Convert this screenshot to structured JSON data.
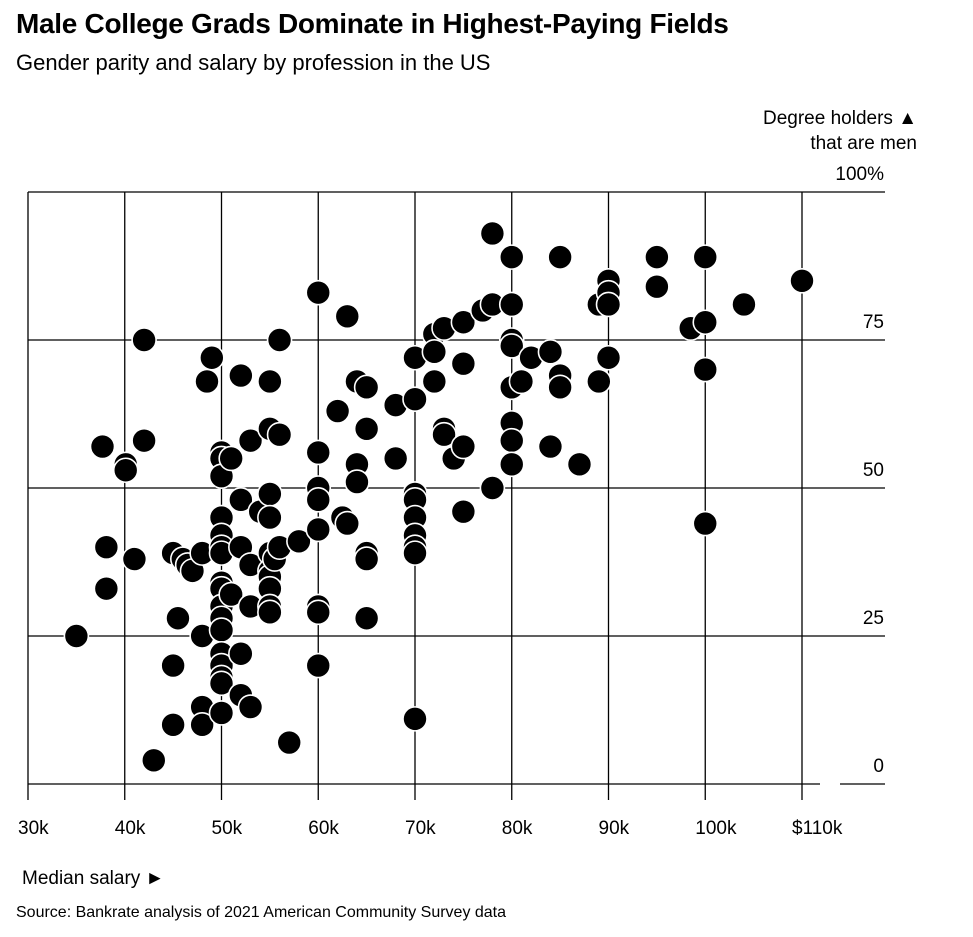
{
  "title": "Male College Grads Dominate in Highest-Paying Fields",
  "subtitle": "Gender parity and salary by profession in the US",
  "ylabel_line1": "Degree holders ▲",
  "ylabel_line2": "that are men",
  "xlabel": "Median salary ►",
  "source": "Source: Bankrate analysis of 2021 American Community Survey data",
  "chart_data": {
    "type": "scatter",
    "xlabel": "Median salary",
    "ylabel": "Degree holders that are men",
    "xlim": [
      30000,
      110000
    ],
    "ylim": [
      0,
      100
    ],
    "x_ticks": [
      30000,
      40000,
      50000,
      60000,
      70000,
      80000,
      90000,
      100000,
      110000
    ],
    "x_tick_labels": [
      "30k",
      "40k",
      "50k",
      "60k",
      "70k",
      "80k",
      "90k",
      "100k",
      "$110k"
    ],
    "y_ticks": [
      0,
      25,
      50,
      75,
      100
    ],
    "y_tick_labels": [
      "0",
      "25",
      "50",
      "75",
      "100%"
    ],
    "grid": true,
    "points": [
      [
        35000,
        25
      ],
      [
        37700,
        57
      ],
      [
        38100,
        40
      ],
      [
        38100,
        33
      ],
      [
        40100,
        54
      ],
      [
        40100,
        53
      ],
      [
        41000,
        38
      ],
      [
        42000,
        58
      ],
      [
        42000,
        75
      ],
      [
        43000,
        4
      ],
      [
        45000,
        39
      ],
      [
        45000,
        20
      ],
      [
        45000,
        10
      ],
      [
        45500,
        28
      ],
      [
        46000,
        38
      ],
      [
        46500,
        37
      ],
      [
        47000,
        36
      ],
      [
        48000,
        39
      ],
      [
        48000,
        25
      ],
      [
        48000,
        13
      ],
      [
        48000,
        10
      ],
      [
        48500,
        68
      ],
      [
        49000,
        72
      ],
      [
        50000,
        56
      ],
      [
        50000,
        55
      ],
      [
        50000,
        52
      ],
      [
        50000,
        45
      ],
      [
        50000,
        42
      ],
      [
        50000,
        40
      ],
      [
        50000,
        39
      ],
      [
        50000,
        34
      ],
      [
        50000,
        33
      ],
      [
        50000,
        30
      ],
      [
        50000,
        28
      ],
      [
        50000,
        26
      ],
      [
        50000,
        22
      ],
      [
        50000,
        20
      ],
      [
        50000,
        18
      ],
      [
        50000,
        17
      ],
      [
        50000,
        12
      ],
      [
        51000,
        55
      ],
      [
        51000,
        32
      ],
      [
        52000,
        69
      ],
      [
        52000,
        48
      ],
      [
        52000,
        40
      ],
      [
        52000,
        22
      ],
      [
        52000,
        15
      ],
      [
        53000,
        58
      ],
      [
        53000,
        37
      ],
      [
        53000,
        30
      ],
      [
        53000,
        13
      ],
      [
        54000,
        46
      ],
      [
        55000,
        68
      ],
      [
        55000,
        60
      ],
      [
        55000,
        49
      ],
      [
        55000,
        45
      ],
      [
        55000,
        39
      ],
      [
        55000,
        36
      ],
      [
        55000,
        35
      ],
      [
        55000,
        33
      ],
      [
        55000,
        30
      ],
      [
        55000,
        29
      ],
      [
        55500,
        38
      ],
      [
        56000,
        75
      ],
      [
        56000,
        59
      ],
      [
        56000,
        40
      ],
      [
        57000,
        7
      ],
      [
        58000,
        41
      ],
      [
        60000,
        83
      ],
      [
        60000,
        56
      ],
      [
        60000,
        50
      ],
      [
        60000,
        48
      ],
      [
        60000,
        43
      ],
      [
        60000,
        30
      ],
      [
        60000,
        29
      ],
      [
        60000,
        20
      ],
      [
        62000,
        63
      ],
      [
        62500,
        45
      ],
      [
        63000,
        44
      ],
      [
        63000,
        79
      ],
      [
        64000,
        54
      ],
      [
        64000,
        51
      ],
      [
        64000,
        68
      ],
      [
        65000,
        67
      ],
      [
        65000,
        60
      ],
      [
        65000,
        39
      ],
      [
        65000,
        38
      ],
      [
        65000,
        28
      ],
      [
        68000,
        55
      ],
      [
        68000,
        64
      ],
      [
        70000,
        72
      ],
      [
        70000,
        65
      ],
      [
        70000,
        49
      ],
      [
        70000,
        48
      ],
      [
        70000,
        45
      ],
      [
        70000,
        42
      ],
      [
        70000,
        40
      ],
      [
        70000,
        39
      ],
      [
        70000,
        11
      ],
      [
        72000,
        76
      ],
      [
        72000,
        73
      ],
      [
        72000,
        68
      ],
      [
        73000,
        77
      ],
      [
        73000,
        60
      ],
      [
        73000,
        59
      ],
      [
        74000,
        55
      ],
      [
        75000,
        71
      ],
      [
        75000,
        57
      ],
      [
        75000,
        46
      ],
      [
        75000,
        78
      ],
      [
        77000,
        80
      ],
      [
        78000,
        81
      ],
      [
        78000,
        50
      ],
      [
        78000,
        93
      ],
      [
        80000,
        89
      ],
      [
        80000,
        81
      ],
      [
        80000,
        75
      ],
      [
        80000,
        74
      ],
      [
        80000,
        67
      ],
      [
        80000,
        61
      ],
      [
        80000,
        58
      ],
      [
        80000,
        54
      ],
      [
        81000,
        68
      ],
      [
        82000,
        72
      ],
      [
        84000,
        73
      ],
      [
        84000,
        57
      ],
      [
        85000,
        89
      ],
      [
        85000,
        69
      ],
      [
        85000,
        67
      ],
      [
        87000,
        54
      ],
      [
        89000,
        68
      ],
      [
        89000,
        81
      ],
      [
        90000,
        85
      ],
      [
        90000,
        83
      ],
      [
        90000,
        81
      ],
      [
        90000,
        72
      ],
      [
        95000,
        89
      ],
      [
        95000,
        84
      ],
      [
        98500,
        77
      ],
      [
        100000,
        89
      ],
      [
        100000,
        78
      ],
      [
        100000,
        70
      ],
      [
        100000,
        44
      ],
      [
        104000,
        81
      ],
      [
        110000,
        85
      ]
    ]
  }
}
